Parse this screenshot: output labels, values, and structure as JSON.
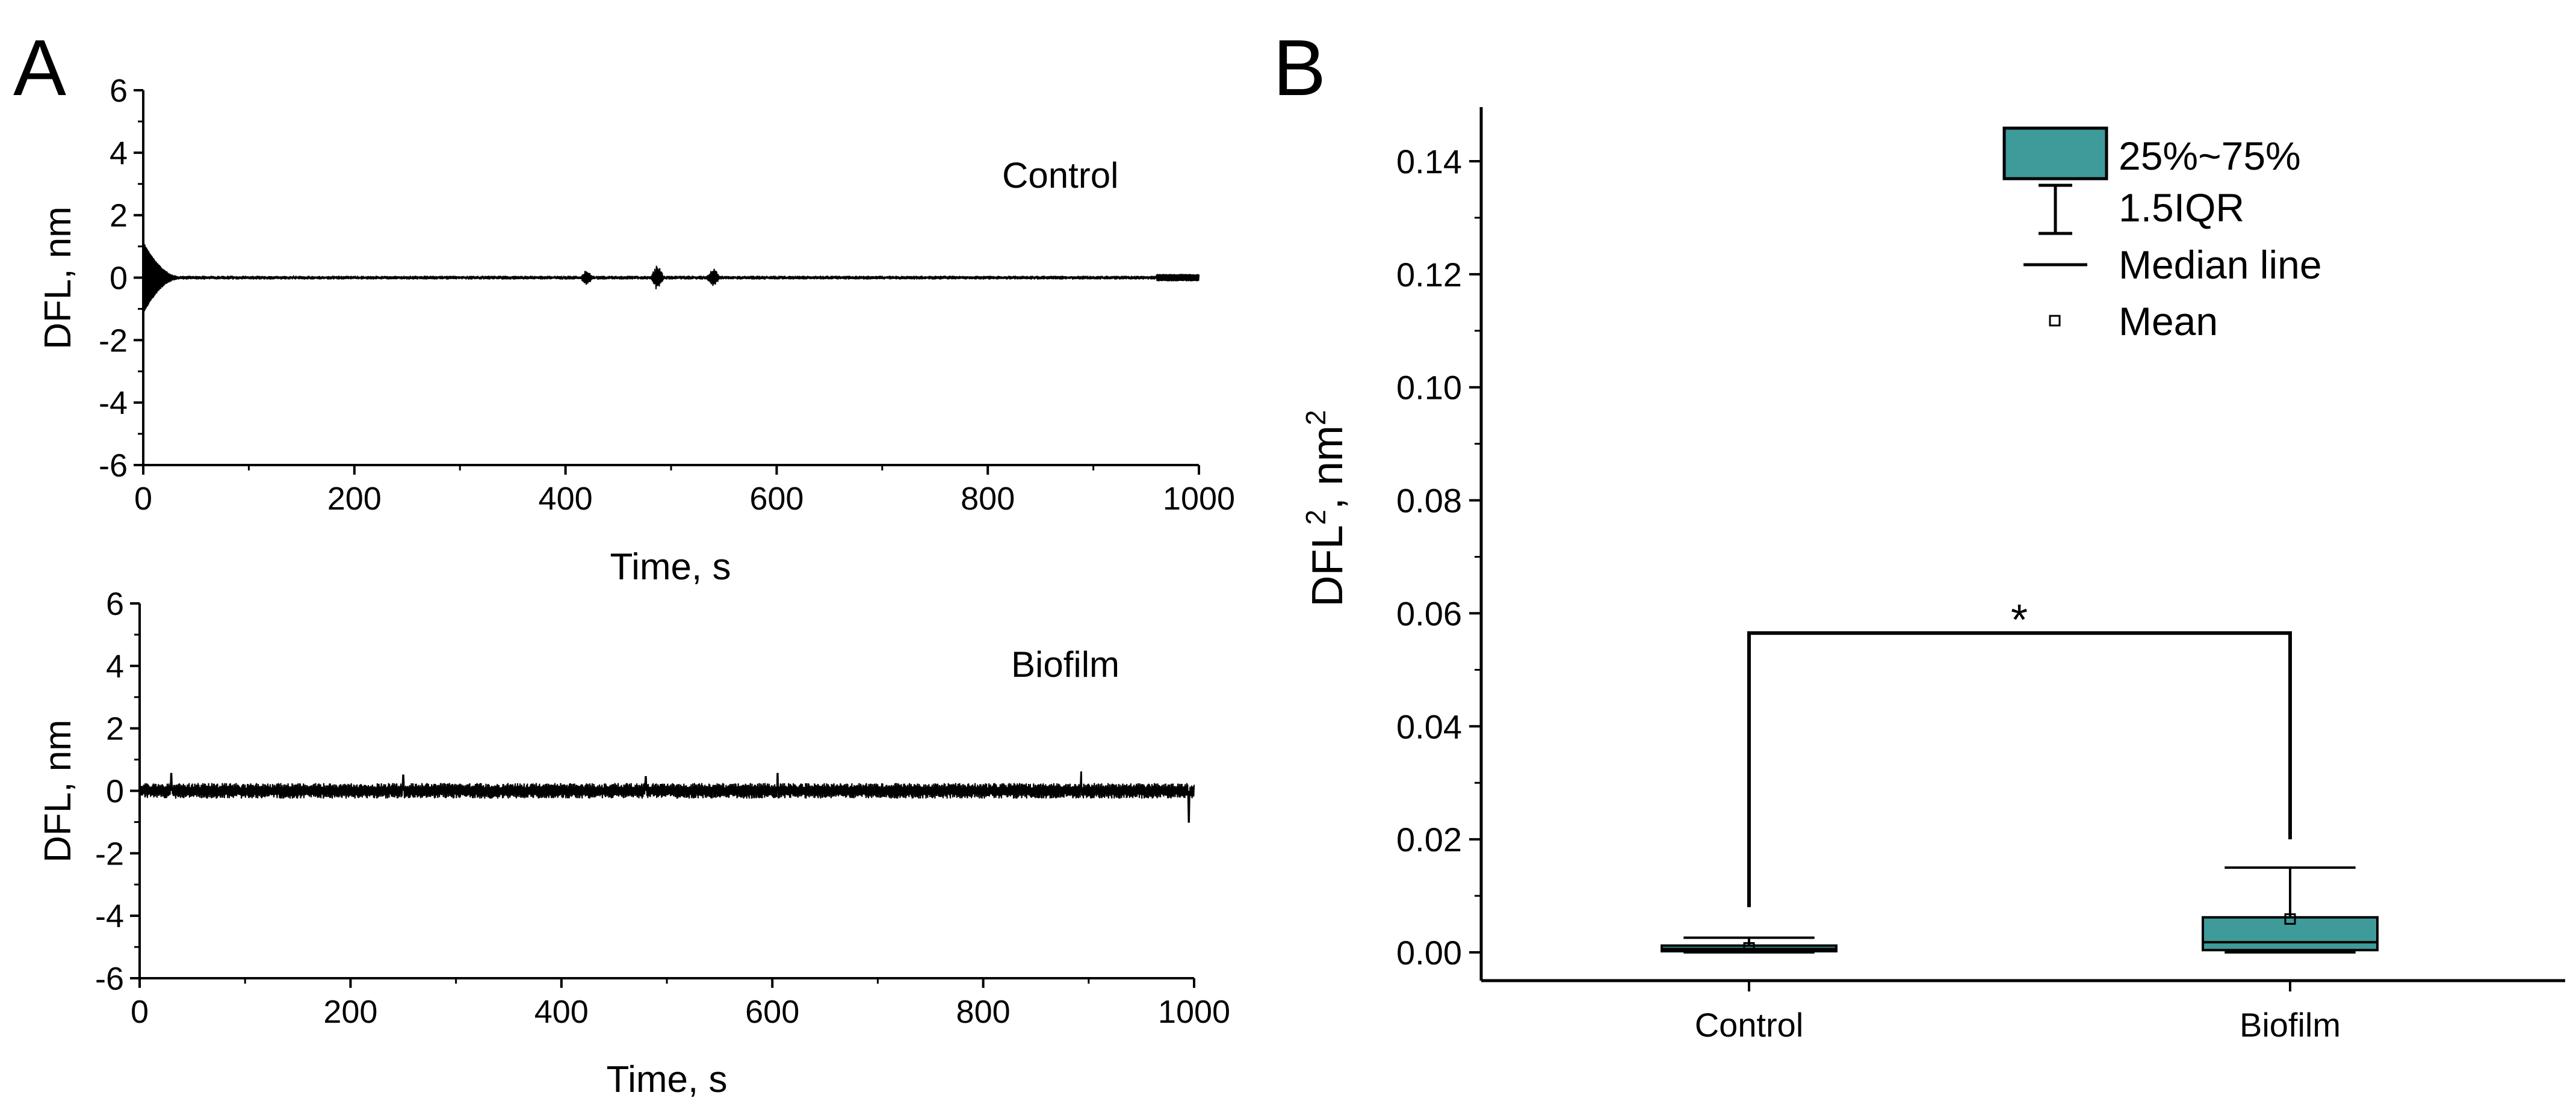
{
  "colors": {
    "box_fill": "#3f9a9a",
    "ink": "#000000"
  },
  "chart_data": [
    {
      "panel": "A",
      "type": "line",
      "series_label": "Control",
      "xlabel": "Time, s",
      "ylabel": "DFL, nm",
      "xlim": [
        0,
        1000
      ],
      "ylim": [
        -6,
        6
      ],
      "xticks": [
        0,
        200,
        400,
        600,
        800,
        1000
      ],
      "yticks": [
        -6,
        -4,
        -2,
        0,
        2,
        4,
        6
      ],
      "trace": {
        "baseline": 0,
        "noise_amplitude": 0.06,
        "initial_transient": {
          "t_start": 0,
          "t_end": 35,
          "peak": 1.1
        },
        "bursts": [
          {
            "t": 420,
            "amplitude": 0.28
          },
          {
            "t": 487,
            "amplitude": 0.45
          },
          {
            "t": 540,
            "amplitude": 0.35
          }
        ],
        "end_segment": {
          "t_start": 960,
          "t_end": 1000,
          "amplitude": 0.12
        }
      }
    },
    {
      "panel": "A",
      "type": "line",
      "series_label": "Biofilm",
      "xlabel": "Time, s",
      "ylabel": "DFL, nm",
      "xlim": [
        0,
        1000
      ],
      "ylim": [
        -6,
        6
      ],
      "xticks": [
        0,
        200,
        400,
        600,
        800,
        1000
      ],
      "yticks": [
        -6,
        -4,
        -2,
        0,
        2,
        4,
        6
      ],
      "trace": {
        "baseline": 0,
        "noise_amplitude": 0.25,
        "spikes": [
          {
            "t": 30,
            "amplitude": 0.55
          },
          {
            "t": 250,
            "amplitude": 0.5
          },
          {
            "t": 480,
            "amplitude": 0.45
          },
          {
            "t": 605,
            "amplitude": 0.55
          },
          {
            "t": 893,
            "amplitude": 0.6
          },
          {
            "t": 995,
            "amplitude": -1.0
          }
        ]
      }
    },
    {
      "panel": "B",
      "type": "box",
      "ylabel": "DFL², nm²",
      "ylabel_base": "DFL",
      "ylabel_sup": "2",
      "ylabel_mid": ", nm",
      "ylabel_sup2": "2",
      "ylim": [
        -0.005,
        0.15
      ],
      "yticks": [
        0.0,
        0.02,
        0.04,
        0.06,
        0.08,
        0.1,
        0.12,
        0.14
      ],
      "ytick_labels": [
        "0.00",
        "0.02",
        "0.04",
        "0.06",
        "0.08",
        "0.10",
        "0.12",
        "0.14"
      ],
      "categories": [
        "Control",
        "Biofilm"
      ],
      "boxes": [
        {
          "name": "Control",
          "q1": 0.0002,
          "median": 0.0006,
          "q3": 0.0012,
          "whisker_low": 0.0,
          "whisker_high": 0.0026,
          "mean": 0.0008
        },
        {
          "name": "Biofilm",
          "q1": 0.0004,
          "median": 0.0018,
          "q3": 0.0062,
          "whisker_low": 0.0,
          "whisker_high": 0.015,
          "mean": 0.0059
        }
      ],
      "significance": {
        "symbol": "*",
        "from": "Control",
        "to": "Biofilm",
        "bar_y": 0.0565,
        "left_drop_to": 0.008,
        "right_drop_to": 0.02
      },
      "legend": {
        "position": "top-right",
        "items": [
          {
            "kind": "box",
            "label": "25%~75%"
          },
          {
            "kind": "whisker",
            "label": "1.5IQR"
          },
          {
            "kind": "line",
            "label": "Median line"
          },
          {
            "kind": "point",
            "label": "Mean"
          }
        ]
      }
    }
  ]
}
